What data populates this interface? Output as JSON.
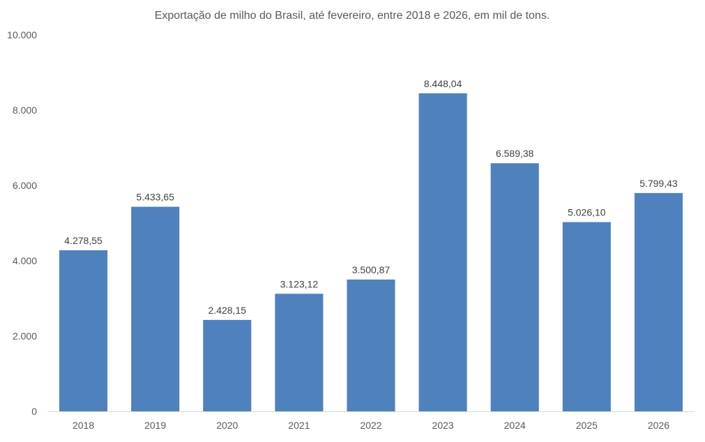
{
  "chart_data": {
    "type": "bar",
    "title": "Exportação de milho do Brasil, até fevereiro, entre 2018 e 2026, em mil de tons.",
    "xlabel": "",
    "ylabel": "",
    "categories": [
      "2018",
      "2019",
      "2020",
      "2021",
      "2022",
      "2023",
      "2024",
      "2025",
      "2026"
    ],
    "values": [
      4278.55,
      5433.65,
      2428.15,
      3123.12,
      3500.87,
      8448.04,
      6589.38,
      5026.1,
      5799.43
    ],
    "data_labels": [
      "4.278,55",
      "5.433,65",
      "2.428,15",
      "3.123,12",
      "3.500,87",
      "8.448,04",
      "6.589,38",
      "5.026,10",
      "5.799,43"
    ],
    "ylim": [
      0,
      10000
    ],
    "yticks": [
      0,
      2000,
      4000,
      6000,
      8000,
      10000
    ],
    "ytick_labels": [
      "0",
      "2.000",
      "4.000",
      "6.000",
      "8.000",
      "10.000"
    ],
    "grid": false,
    "legend": "none",
    "bar_color": "#4F81BD"
  }
}
